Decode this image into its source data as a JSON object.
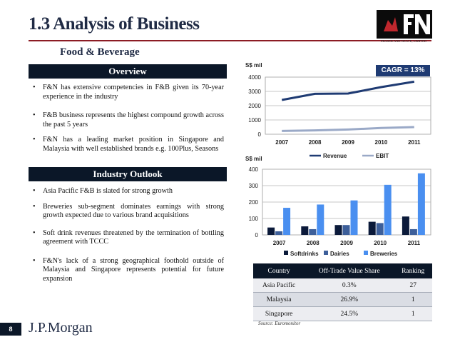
{
  "header": {
    "title": "1.3 Analysis of Business",
    "subtitle": "Food & Beverage",
    "logo_caption": "FRASER AND NEAVE, LIMITED"
  },
  "overview": {
    "heading": "Overview",
    "bullets": [
      "F&N has extensive competencies in F&B given its 70-year experience in the industry",
      "F&B business represents the highest compound growth across the past 5 years",
      "F&N has a leading market position in Singapore and Malaysia with well established brands e.g. 100Plus, Seasons"
    ]
  },
  "outlook": {
    "heading": "Industry Outlook",
    "bullets": [
      "Asia Pacific F&B is slated for strong growth",
      "Breweries sub-segment dominates earnings with strong growth expected due to various brand acquisitions",
      "Soft drink revenues threatened by the termination of bottling agreement with TCCC",
      "F&N's lack of a strong geographical foothold outside of Malaysia and Singapore represents potential for future expansion"
    ]
  },
  "cagr_label": "CAGR = 13%",
  "chart_data": [
    {
      "type": "line",
      "ylabel": "S$ mil",
      "categories": [
        "2007",
        "2008",
        "2009",
        "2010",
        "2011"
      ],
      "ylim": [
        0,
        4000
      ],
      "yticks": [
        "0",
        "1000",
        "2000",
        "3000",
        "4000"
      ],
      "grid": true,
      "legend": "bottom",
      "series": [
        {
          "name": "Revenue",
          "color": "#1f3b73",
          "values": [
            2400,
            2830,
            2850,
            3300,
            3680
          ]
        },
        {
          "name": "EBIT",
          "color": "#9aa9c7",
          "values": [
            230,
            270,
            330,
            440,
            500
          ]
        }
      ]
    },
    {
      "type": "bar",
      "ylabel": "S$ mil",
      "categories": [
        "2007",
        "2008",
        "2009",
        "2010",
        "2011"
      ],
      "ylim": [
        0,
        400
      ],
      "yticks": [
        "0",
        "100",
        "200",
        "300",
        "400"
      ],
      "grid": true,
      "legend": "bottom",
      "series": [
        {
          "name": "Softdrinks",
          "color": "#0b1a3a",
          "values": [
            45,
            52,
            60,
            80,
            112
          ]
        },
        {
          "name": "Dairies",
          "color": "#3d5f9a",
          "values": [
            22,
            35,
            60,
            72,
            35
          ]
        },
        {
          "name": "Breweries",
          "color": "#4a8ff0",
          "values": [
            165,
            185,
            210,
            305,
            375
          ]
        }
      ]
    }
  ],
  "table": {
    "headers": [
      "Country",
      "Off-Trade Value Share",
      "Ranking"
    ],
    "rows": [
      [
        "Asia Pacific",
        "0.3%",
        "27"
      ],
      [
        "Malaysia",
        "26.9%",
        "1"
      ],
      [
        "Singapore",
        "24.5%",
        "1"
      ]
    ]
  },
  "source": "Source: Euromonitor",
  "footer": {
    "page_number": "8",
    "brand": "J.P.Morgan"
  },
  "icons": {
    "logo": "fn-logo-icon"
  }
}
